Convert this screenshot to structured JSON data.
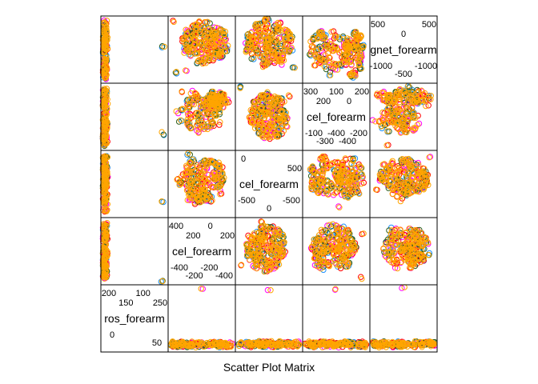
{
  "chart_data": {
    "type": "scatter",
    "layout": "scatter-plot-matrix",
    "xlabel": "Scatter Plot Matrix",
    "variables": [
      "gyros_forearm",
      "accel_forearm",
      "accel_forearm",
      "accel_forearm",
      "magnet_forearm"
    ],
    "diagonal_labels": [
      {
        "text": "ros_forearm",
        "ticks_upper": [
          "200",
          "150",
          "100",
          "250"
        ],
        "ticks_lower": [
          "0",
          "50"
        ]
      },
      {
        "text": "cel_forearm",
        "ticks_upper": [
          "400",
          "200",
          "0",
          "200"
        ],
        "ticks_lower": [
          "-400",
          "-200",
          "-200",
          "-400"
        ]
      },
      {
        "text": "cel_forearm",
        "ticks_upper": [
          "0",
          "500"
        ],
        "ticks_lower": [
          "-500",
          "0",
          "-500"
        ]
      },
      {
        "text": "cel_forearm",
        "ticks_upper": [
          "300",
          "200",
          "100",
          "0",
          "200"
        ],
        "ticks_lower": [
          "-100",
          "-300",
          "-400",
          "-400",
          "-200"
        ]
      },
      {
        "text": "gnet_forearm",
        "ticks_upper": [
          "500",
          "0",
          "500"
        ],
        "ticks_lower": [
          "-1000",
          "-500",
          "-1000"
        ]
      }
    ],
    "series": [
      {
        "color": "#1E90FF"
      },
      {
        "color": "#FF00FF"
      },
      {
        "color": "#FF0000"
      },
      {
        "color": "#2E5E1E"
      },
      {
        "color": "#FFA500"
      }
    ],
    "grid": false,
    "legend": "none"
  }
}
